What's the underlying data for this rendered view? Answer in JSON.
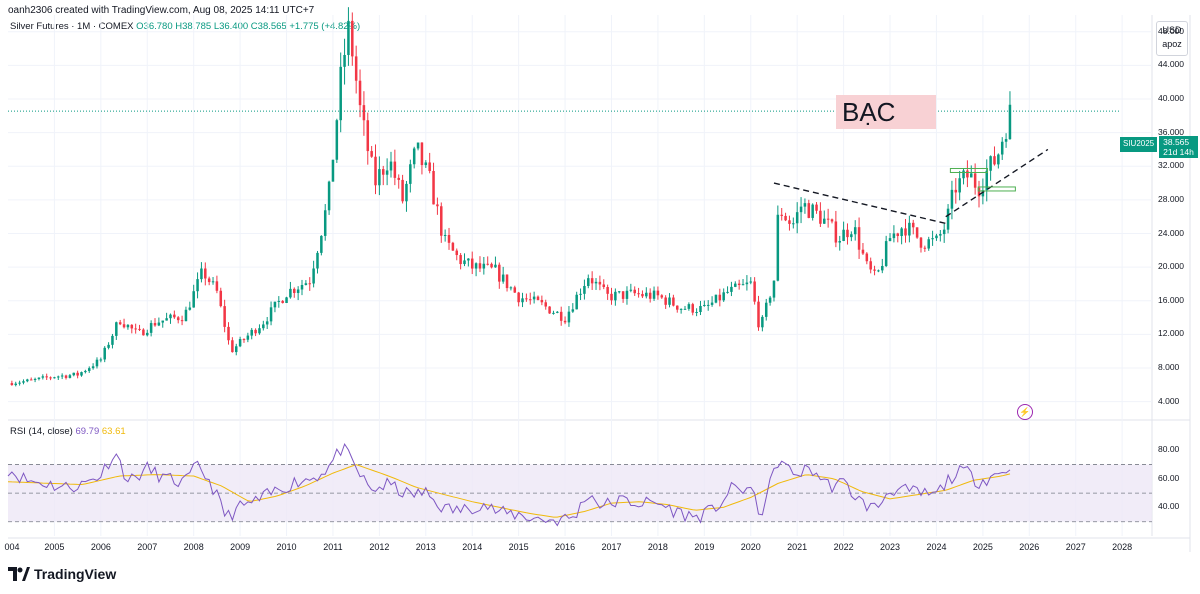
{
  "header": {
    "credit": "oanh2306 created with TradingView.com, Aug 08, 2025 14:11 UTC+7",
    "symbol_name": "Silver Futures · 1M · COMEX",
    "ohlc": "O36.780 H38.785 L36.400 C38.565 +1.775 (+4.82%)"
  },
  "currency": {
    "unit": "USD",
    "aux": "apoz"
  },
  "annotation": {
    "label": "BẠC"
  },
  "price_tag": {
    "symbol": "SIU2025",
    "price": "38.565",
    "countdown": "21d 14h"
  },
  "rsi": {
    "label": "RSI (14, close)",
    "value": "69.79",
    "ma_value": "63.61"
  },
  "logo": {
    "name": "TradingView"
  },
  "colors": {
    "up": "#089981",
    "down": "#f23645",
    "rsi_line": "#7e57c2",
    "rsi_ma": "#f0b90b",
    "rsi_band": "#ede7f6"
  },
  "chart_data": {
    "type": "candlestick",
    "interval": "1M",
    "y_ticks": [
      "48.000",
      "44.000",
      "40.000",
      "36.000",
      "32.000",
      "28.000",
      "24.000",
      "20.000",
      "16.000",
      "12.000",
      "8.000",
      "4.000"
    ],
    "rsi_ticks": [
      "80.00",
      "60.00",
      "40.00"
    ],
    "x_ticks": [
      "004",
      "2005",
      "2006",
      "2007",
      "2008",
      "2009",
      "2010",
      "2011",
      "2012",
      "2013",
      "2014",
      "2015",
      "2016",
      "2017",
      "2018",
      "2019",
      "2020",
      "2021",
      "2022",
      "2023",
      "2024",
      "2025",
      "2026",
      "2027",
      "2028"
    ],
    "ylim": [
      3,
      50
    ],
    "rsi_ylim": [
      20,
      90
    ],
    "xlim": [
      2004.0,
      2028.6
    ],
    "last_price": 38.565,
    "rsi_levels": [
      70,
      50,
      30
    ],
    "price_path": [
      [
        2004.0,
        6.2
      ],
      [
        2004.5,
        6.5
      ],
      [
        2005.0,
        7.0
      ],
      [
        2005.5,
        7.2
      ],
      [
        2006.0,
        9.0
      ],
      [
        2006.4,
        13.8
      ],
      [
        2006.8,
        12.0
      ],
      [
        2007.2,
        13.5
      ],
      [
        2007.8,
        14.2
      ],
      [
        2008.2,
        19.5
      ],
      [
        2008.5,
        17.0
      ],
      [
        2008.8,
        10.0
      ],
      [
        2009.0,
        11.0
      ],
      [
        2009.5,
        13.5
      ],
      [
        2010.0,
        17.0
      ],
      [
        2010.5,
        18.5
      ],
      [
        2010.9,
        28.0
      ],
      [
        2011.2,
        44.0
      ],
      [
        2011.35,
        48.5
      ],
      [
        2011.6,
        38.0
      ],
      [
        2011.9,
        30.0
      ],
      [
        2012.2,
        33.0
      ],
      [
        2012.5,
        28.0
      ],
      [
        2012.8,
        34.0
      ],
      [
        2013.1,
        30.0
      ],
      [
        2013.4,
        23.0
      ],
      [
        2013.7,
        21.0
      ],
      [
        2014.0,
        20.0
      ],
      [
        2014.5,
        19.5
      ],
      [
        2015.0,
        16.5
      ],
      [
        2015.5,
        15.5
      ],
      [
        2016.0,
        14.0
      ],
      [
        2016.5,
        19.0
      ],
      [
        2016.9,
        16.5
      ],
      [
        2017.5,
        16.8
      ],
      [
        2018.0,
        16.5
      ],
      [
        2018.5,
        15.2
      ],
      [
        2019.0,
        15.0
      ],
      [
        2019.5,
        17.0
      ],
      [
        2020.0,
        18.0
      ],
      [
        2020.2,
        12.5
      ],
      [
        2020.5,
        18.5
      ],
      [
        2020.6,
        27.0
      ],
      [
        2020.9,
        25.0
      ],
      [
        2021.1,
        27.5
      ],
      [
        2021.5,
        26.0
      ],
      [
        2021.9,
        23.5
      ],
      [
        2022.2,
        25.0
      ],
      [
        2022.5,
        20.0
      ],
      [
        2022.7,
        18.5
      ],
      [
        2023.0,
        23.5
      ],
      [
        2023.3,
        25.0
      ],
      [
        2023.7,
        23.0
      ],
      [
        2024.0,
        23.0
      ],
      [
        2024.2,
        25.0
      ],
      [
        2024.4,
        29.5
      ],
      [
        2024.7,
        31.0
      ],
      [
        2024.9,
        29.5
      ],
      [
        2025.1,
        31.5
      ],
      [
        2025.3,
        33.0
      ],
      [
        2025.45,
        36.0
      ],
      [
        2025.6,
        38.565
      ]
    ],
    "rsi_path": [
      [
        2004.0,
        67
      ],
      [
        2004.4,
        59
      ],
      [
        2004.8,
        57
      ],
      [
        2005.2,
        54
      ],
      [
        2005.6,
        56
      ],
      [
        2006.0,
        63
      ],
      [
        2006.3,
        79
      ],
      [
        2006.6,
        58
      ],
      [
        2007.0,
        67
      ],
      [
        2007.4,
        60
      ],
      [
        2007.8,
        57
      ],
      [
        2008.1,
        70
      ],
      [
        2008.4,
        55
      ],
      [
        2008.7,
        33
      ],
      [
        2009.0,
        40
      ],
      [
        2009.4,
        45
      ],
      [
        2009.8,
        52
      ],
      [
        2010.2,
        58
      ],
      [
        2010.6,
        61
      ],
      [
        2010.9,
        68
      ],
      [
        2011.2,
        82
      ],
      [
        2011.4,
        72
      ],
      [
        2011.8,
        52
      ],
      [
        2012.2,
        56
      ],
      [
        2012.6,
        49
      ],
      [
        2013.0,
        50
      ],
      [
        2013.4,
        39
      ],
      [
        2013.8,
        38
      ],
      [
        2014.2,
        43
      ],
      [
        2014.6,
        36
      ],
      [
        2015.0,
        35
      ],
      [
        2015.4,
        32
      ],
      [
        2015.8,
        31
      ],
      [
        2016.2,
        33
      ],
      [
        2016.5,
        50
      ],
      [
        2016.8,
        41
      ],
      [
        2017.2,
        45
      ],
      [
        2017.6,
        43
      ],
      [
        2018.0,
        43
      ],
      [
        2018.4,
        37
      ],
      [
        2018.8,
        33
      ],
      [
        2019.2,
        38
      ],
      [
        2019.6,
        53
      ],
      [
        2020.0,
        53
      ],
      [
        2020.2,
        34
      ],
      [
        2020.5,
        64
      ],
      [
        2020.6,
        74
      ],
      [
        2020.9,
        63
      ],
      [
        2021.3,
        67
      ],
      [
        2021.7,
        55
      ],
      [
        2022.0,
        57
      ],
      [
        2022.4,
        43
      ],
      [
        2022.7,
        39
      ],
      [
        2023.0,
        53
      ],
      [
        2023.4,
        51
      ],
      [
        2023.8,
        49
      ],
      [
        2024.0,
        49
      ],
      [
        2024.3,
        61
      ],
      [
        2024.6,
        66
      ],
      [
        2024.9,
        58
      ],
      [
        2025.2,
        62
      ],
      [
        2025.45,
        65
      ],
      [
        2025.6,
        69.79
      ]
    ],
    "rsi_ma_path": [
      [
        2004.0,
        58
      ],
      [
        2004.8,
        57
      ],
      [
        2005.6,
        56
      ],
      [
        2006.4,
        62
      ],
      [
        2007.2,
        63
      ],
      [
        2008.0,
        62
      ],
      [
        2008.6,
        55
      ],
      [
        2009.2,
        44
      ],
      [
        2009.8,
        48
      ],
      [
        2010.4,
        55
      ],
      [
        2011.0,
        64
      ],
      [
        2011.5,
        70
      ],
      [
        2012.2,
        62
      ],
      [
        2012.8,
        54
      ],
      [
        2013.4,
        49
      ],
      [
        2014.0,
        44
      ],
      [
        2014.6,
        40
      ],
      [
        2015.2,
        36
      ],
      [
        2015.8,
        33
      ],
      [
        2016.4,
        37
      ],
      [
        2017.0,
        43
      ],
      [
        2017.6,
        44
      ],
      [
        2018.2,
        42
      ],
      [
        2018.8,
        38
      ],
      [
        2019.4,
        40
      ],
      [
        2020.0,
        47
      ],
      [
        2020.6,
        57
      ],
      [
        2021.2,
        63
      ],
      [
        2021.8,
        60
      ],
      [
        2022.4,
        51
      ],
      [
        2023.0,
        46
      ],
      [
        2023.6,
        49
      ],
      [
        2024.2,
        52
      ],
      [
        2024.8,
        59
      ],
      [
        2025.4,
        62
      ],
      [
        2025.6,
        63.61
      ]
    ],
    "trendlines": [
      {
        "style": "dashed",
        "points": [
          [
            2020.5,
            30.0
          ],
          [
            2024.2,
            25.2
          ]
        ]
      },
      {
        "style": "dashed",
        "points": [
          [
            2024.2,
            26.0
          ],
          [
            2026.4,
            34.0
          ]
        ]
      }
    ],
    "support_zones": [
      {
        "price": 31.5,
        "from": 2024.3,
        "to": 2025.1
      },
      {
        "price": 29.3,
        "from": 2024.9,
        "to": 2025.7
      }
    ]
  }
}
